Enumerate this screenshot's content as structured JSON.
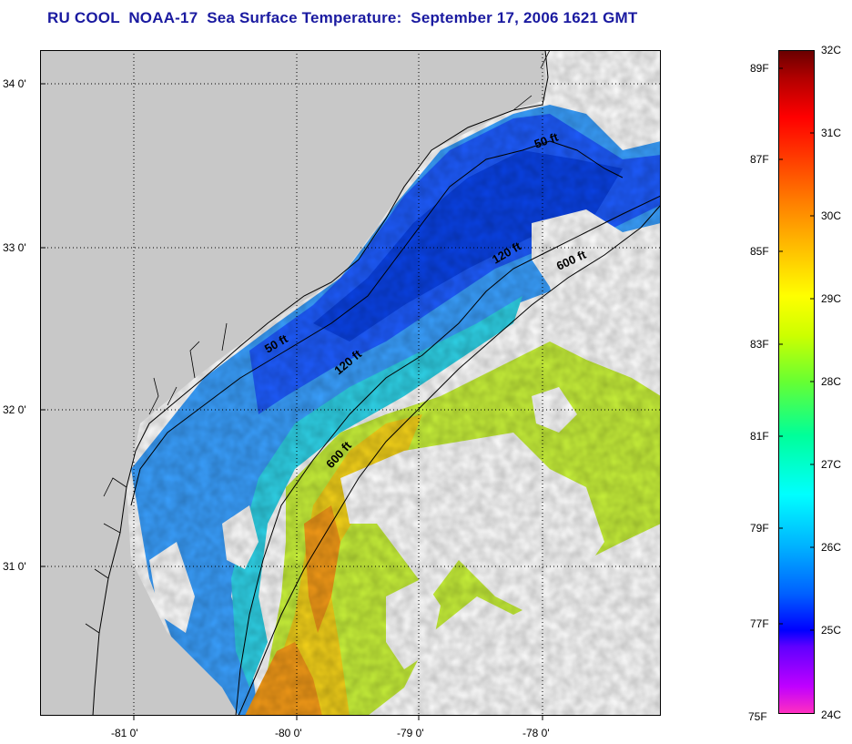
{
  "title": "RU COOL  NOAA-17  Sea Surface Temperature:  September 17, 2006 1621 GMT",
  "map": {
    "lon_labels": [
      "-81 0'",
      "-80 0'",
      "-79 0'",
      "-78 0'"
    ],
    "lat_labels": [
      "34 0'",
      "33 0'",
      "32 0'",
      "31 0'"
    ],
    "contours": {
      "c50_upper": "50 ft",
      "c50_lower": "50 ft",
      "c120_upper": "120 ft",
      "c120_lower": "120 ft",
      "c600_upper": "600 ft",
      "c600_lower": "600 ft"
    },
    "colors": {
      "land": "#c8c8c8",
      "cloud": "#ffffff",
      "nearshore": "#3aa0ff",
      "shelf": "#1e5cff",
      "shelf_mid": "#0a42e6",
      "slope": "#2fd3e8",
      "gulfstream": "#c9f23a",
      "warm": "#f4d21a",
      "hot": "#f39a18"
    }
  },
  "colorbar": {
    "celsius": [
      "32C",
      "31C",
      "30C",
      "29C",
      "28C",
      "27C",
      "26C",
      "25C",
      "24C"
    ],
    "fahrenheit": [
      "89F",
      "87F",
      "85F",
      "83F",
      "81F",
      "79F",
      "77F",
      "75F"
    ]
  }
}
